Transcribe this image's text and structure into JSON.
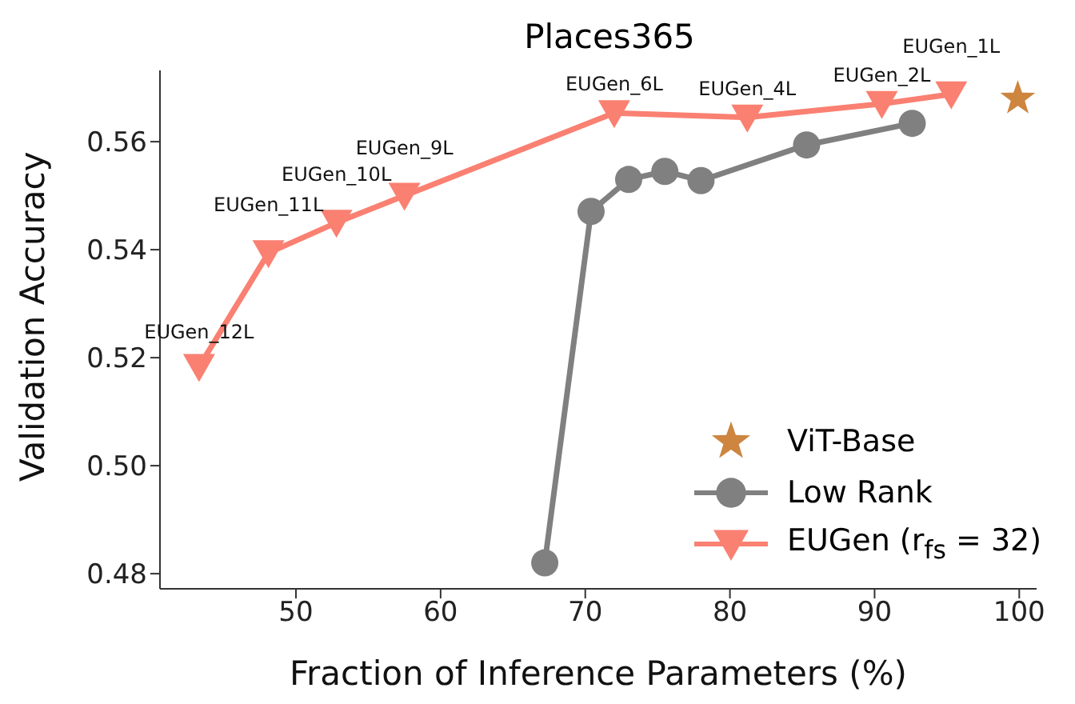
{
  "chart_data": {
    "type": "line",
    "title": "Places365",
    "xlabel": "Fraction of Inference Parameters (%)",
    "ylabel": "Validation Accuracy",
    "xlim": [
      40.6,
      101.2
    ],
    "xticks": [
      50,
      60,
      70,
      80,
      90,
      100
    ],
    "ylim": [
      0.4772,
      0.5732
    ],
    "yticks": [
      {
        "value": 0.48,
        "label": "0.48"
      },
      {
        "value": 0.5,
        "label": "0.50"
      },
      {
        "value": 0.52,
        "label": "0.52"
      },
      {
        "value": 0.54,
        "label": "0.54"
      },
      {
        "value": 0.56,
        "label": "0.56"
      }
    ],
    "legend": "bottom right",
    "grid": false,
    "series": [
      {
        "name": "ViT-Base",
        "type": "scatter",
        "marker": "star",
        "color": "#cd853f",
        "x": [
          99.9
        ],
        "values": [
          0.568
        ]
      },
      {
        "name": "Low Rank",
        "marker": "circle",
        "color": "#808080",
        "x": [
          67.2,
          70.4,
          73.0,
          75.5,
          78.0,
          85.3,
          92.6
        ],
        "values": [
          0.482,
          0.5471,
          0.553,
          0.5545,
          0.5528,
          0.5594,
          0.5634
        ]
      },
      {
        "name": "EUGen (r$_{fs}$ = 32)",
        "marker": "triangle",
        "color": "#fa8072",
        "x": [
          43.3,
          48.1,
          52.8,
          57.5,
          72.0,
          81.2,
          90.5,
          95.3
        ],
        "values": [
          0.5183,
          0.5394,
          0.545,
          0.55,
          0.5653,
          0.5645,
          0.567,
          0.5688
        ]
      }
    ],
    "annotations": [
      {
        "text": "EUGen_12L",
        "x": 43.3,
        "y": 0.5183
      },
      {
        "text": "EUGen_11L",
        "x": 48.1,
        "y": 0.5394
      },
      {
        "text": "EUGen_10L",
        "x": 52.8,
        "y": 0.545
      },
      {
        "text": "EUGen_9L",
        "x": 57.5,
        "y": 0.55
      },
      {
        "text": "EUGen_6L",
        "x": 72.0,
        "y": 0.5653
      },
      {
        "text": "EUGen_4L",
        "x": 81.2,
        "y": 0.5645
      },
      {
        "text": "EUGen_2L",
        "x": 90.5,
        "y": 0.567
      },
      {
        "text": "EUGen_1L",
        "x": 95.3,
        "y": 0.5688
      }
    ]
  }
}
